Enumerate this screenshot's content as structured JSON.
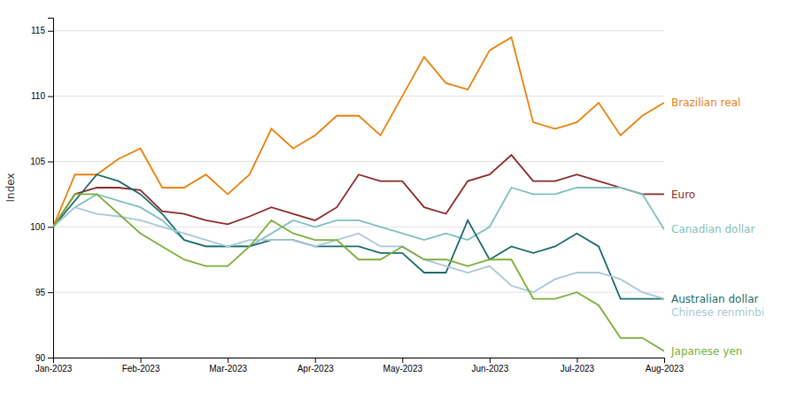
{
  "chart_data": {
    "type": "line",
    "y_label": "Index",
    "categories": [
      "Jan-2023",
      null,
      null,
      null,
      "Feb-2023",
      null,
      null,
      null,
      "Mar-2023",
      null,
      null,
      null,
      "Apr-2023",
      null,
      null,
      null,
      "May-2023",
      null,
      null,
      null,
      "Jun-2023",
      null,
      null,
      null,
      "Jul-2023",
      null,
      null,
      null,
      "Aug-2023"
    ],
    "ylim": [
      90,
      116
    ],
    "yticks": [
      90,
      95,
      100,
      105,
      110,
      115
    ],
    "grid": true,
    "series": [
      {
        "name": "Brazilian real",
        "color": "#E8820C",
        "values": [
          100.0,
          104.0,
          104.0,
          105.2,
          106.0,
          103.0,
          103.0,
          104.0,
          102.5,
          104.0,
          107.5,
          106.0,
          107.0,
          108.5,
          108.5,
          107.0,
          110.0,
          113.0,
          111.0,
          110.5,
          113.5,
          114.5,
          108.0,
          107.5,
          108.0,
          109.5,
          107.0,
          108.5,
          109.5
        ]
      },
      {
        "name": "Euro",
        "color": "#8B2A2A",
        "values": [
          100.0,
          102.5,
          103.0,
          103.0,
          102.8,
          101.2,
          101.0,
          100.5,
          100.2,
          100.8,
          101.5,
          101.0,
          100.5,
          101.5,
          104.0,
          103.5,
          103.5,
          101.5,
          101.0,
          103.5,
          104.0,
          105.5,
          103.5,
          103.5,
          104.0,
          103.5,
          103.0,
          102.5,
          102.5
        ]
      },
      {
        "name": "Canadian dollar",
        "color": "#7FBFBF",
        "values": [
          100.0,
          101.5,
          102.5,
          102.0,
          101.5,
          100.5,
          99.0,
          98.5,
          98.5,
          98.5,
          99.5,
          100.5,
          100.0,
          100.5,
          100.5,
          100.0,
          99.5,
          99.0,
          99.5,
          99.0,
          100.0,
          103.0,
          102.5,
          102.5,
          103.0,
          103.0,
          103.0,
          102.5,
          99.8
        ]
      },
      {
        "name": "Australian dollar",
        "color": "#1C6B6B",
        "values": [
          100.0,
          102.0,
          104.0,
          103.5,
          102.5,
          101.0,
          99.0,
          98.5,
          98.5,
          98.5,
          99.0,
          99.0,
          98.5,
          98.5,
          98.5,
          98.0,
          98.0,
          96.5,
          96.5,
          100.5,
          97.5,
          98.5,
          98.0,
          98.5,
          99.5,
          98.5,
          94.5,
          94.5,
          94.5
        ]
      },
      {
        "name": "Chinese renminbi",
        "color": "#A8C8D8",
        "values": [
          100.0,
          101.5,
          101.0,
          100.8,
          100.5,
          100.0,
          99.5,
          99.0,
          98.5,
          99.0,
          99.0,
          99.0,
          98.5,
          99.0,
          99.5,
          98.5,
          98.5,
          97.5,
          97.0,
          96.5,
          97.0,
          95.5,
          95.0,
          96.0,
          96.5,
          96.5,
          96.0,
          95.0,
          94.5
        ]
      },
      {
        "name": "Japanese yen",
        "color": "#7CAF3B",
        "values": [
          100.0,
          102.5,
          102.5,
          101.0,
          99.5,
          98.5,
          97.5,
          97.0,
          97.0,
          98.5,
          100.5,
          99.5,
          99.0,
          99.0,
          97.5,
          97.5,
          98.5,
          97.5,
          97.5,
          97.0,
          97.5,
          97.5,
          94.5,
          94.5,
          95.0,
          94.0,
          91.5,
          91.5,
          90.5
        ]
      }
    ]
  }
}
